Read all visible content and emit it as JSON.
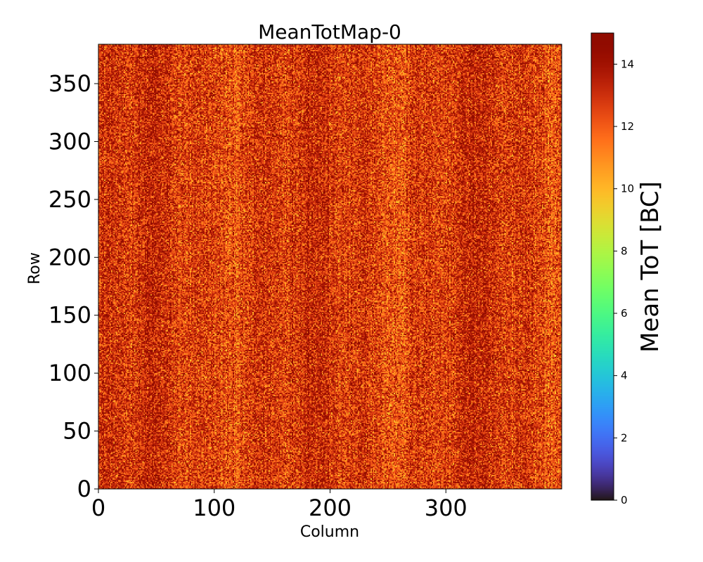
{
  "chart_data": {
    "type": "heatmap",
    "title": "MeanTotMap-0",
    "xlabel": "Column",
    "ylabel": "Row",
    "xlim": [
      0,
      400
    ],
    "ylim": [
      0,
      384
    ],
    "x_ticks": [
      0,
      100,
      200,
      300
    ],
    "x_tick_labels": [
      "0",
      "100",
      "200",
      "300"
    ],
    "y_ticks": [
      0,
      50,
      100,
      150,
      200,
      250,
      300,
      350
    ],
    "y_tick_labels": [
      "0",
      "50",
      "100",
      "150",
      "200",
      "250",
      "300",
      "350"
    ],
    "grid": false,
    "colormap": "turbo",
    "colorbar": {
      "label": "Mean ToT [BC]",
      "range": [
        0,
        15
      ],
      "ticks": [
        0,
        2,
        4,
        6,
        8,
        10,
        12,
        14
      ],
      "tick_labels": [
        "0",
        "2",
        "4",
        "6",
        "8",
        "10",
        "12",
        "14"
      ]
    },
    "data_summary": {
      "columns": 400,
      "rows": 384,
      "typical_value_range": [
        10,
        15
      ],
      "mean_value": 12.8,
      "pattern": "noisy per-pixel values with faint vertical column striping"
    }
  }
}
